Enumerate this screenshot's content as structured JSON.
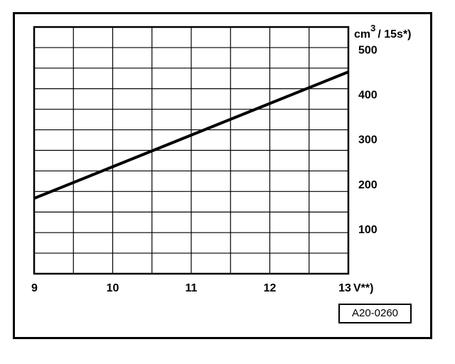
{
  "figure_id": "A20-0260",
  "chart_data": {
    "type": "line",
    "title": "",
    "xlabel": "V**)",
    "ylabel": "cm³ / 15s*)",
    "y_unit_base": "cm",
    "y_unit_exp": "3",
    "y_unit_rest": "/ 15s*)",
    "xlim": [
      9,
      13
    ],
    "ylim": [
      0,
      550
    ],
    "x_ticks": [
      "9",
      "10",
      "11",
      "12",
      "13"
    ],
    "y_ticks": [
      "100",
      "200",
      "300",
      "400",
      "500"
    ],
    "grid": true,
    "series": [
      {
        "x": [
          9,
          13
        ],
        "y": [
          168,
          450
        ]
      }
    ]
  }
}
